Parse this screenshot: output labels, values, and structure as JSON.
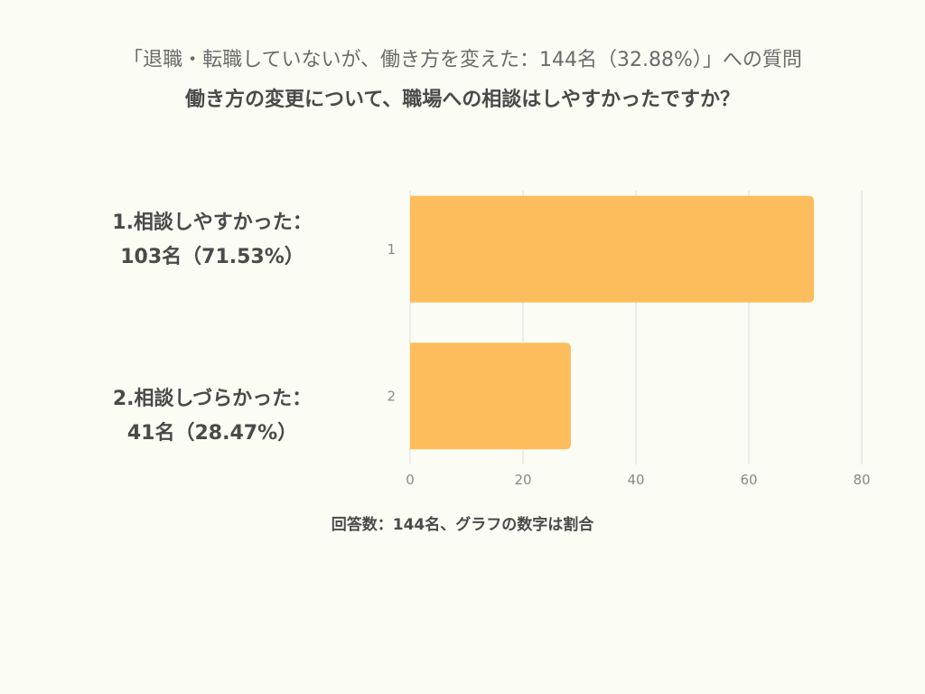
{
  "header": {
    "subtitle": "「退職・転職していないが、働き方を変えた：144名（32.88%）」への質問",
    "title": "働き方の変更について、職場への相談はしやすかったですか？"
  },
  "labels": [
    {
      "line1": "1.相談しやすかった：",
      "line2": "103名（71.53%）"
    },
    {
      "line1": "2.相談しづらかった：",
      "line2": "41名（28.47%）"
    }
  ],
  "footnote": "回答数：144名、グラフの数字は割合",
  "colors": {
    "bar": "#fdbd5d",
    "grid": "#dddddd",
    "tick": "#888888"
  },
  "chart_data": {
    "type": "bar",
    "orientation": "horizontal",
    "categories": [
      "1",
      "2"
    ],
    "values": [
      71.53,
      28.47
    ],
    "xlim": [
      0,
      80
    ],
    "xticks": [
      0,
      20,
      40,
      60,
      80
    ],
    "grid": true
  }
}
